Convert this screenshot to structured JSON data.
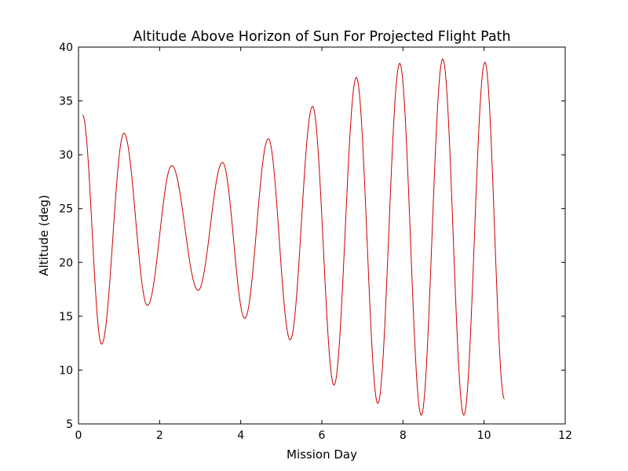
{
  "chart_data": {
    "type": "line",
    "title": "Altitude Above Horizon of Sun For Projected Flight Path",
    "xlabel": "Mission Day",
    "ylabel": "Altitude (deg)",
    "xlim": [
      0,
      12
    ],
    "ylim": [
      5,
      40
    ],
    "xticks": [
      0,
      2,
      4,
      6,
      8,
      10,
      12
    ],
    "yticks": [
      5,
      10,
      15,
      20,
      25,
      30,
      35,
      40
    ],
    "grid": false,
    "legend": "none",
    "series": [
      {
        "color": "#cc0000",
        "x_range": [
          0.1,
          10.5
        ],
        "extrema": [
          {
            "x": 0.1,
            "y": 33.7
          },
          {
            "x": 0.57,
            "y": 12.4
          },
          {
            "x": 1.12,
            "y": 32.0
          },
          {
            "x": 1.7,
            "y": 16.0
          },
          {
            "x": 2.3,
            "y": 29.0
          },
          {
            "x": 2.95,
            "y": 17.4
          },
          {
            "x": 3.55,
            "y": 29.3
          },
          {
            "x": 4.1,
            "y": 14.8
          },
          {
            "x": 4.68,
            "y": 31.5
          },
          {
            "x": 5.22,
            "y": 12.8
          },
          {
            "x": 5.77,
            "y": 34.5
          },
          {
            "x": 6.3,
            "y": 8.6
          },
          {
            "x": 6.85,
            "y": 37.2
          },
          {
            "x": 7.38,
            "y": 6.9
          },
          {
            "x": 7.92,
            "y": 38.5
          },
          {
            "x": 8.45,
            "y": 5.8
          },
          {
            "x": 8.98,
            "y": 38.9
          },
          {
            "x": 9.5,
            "y": 5.8
          },
          {
            "x": 10.02,
            "y": 38.6
          },
          {
            "x": 10.5,
            "y": 7.3
          }
        ]
      }
    ]
  }
}
